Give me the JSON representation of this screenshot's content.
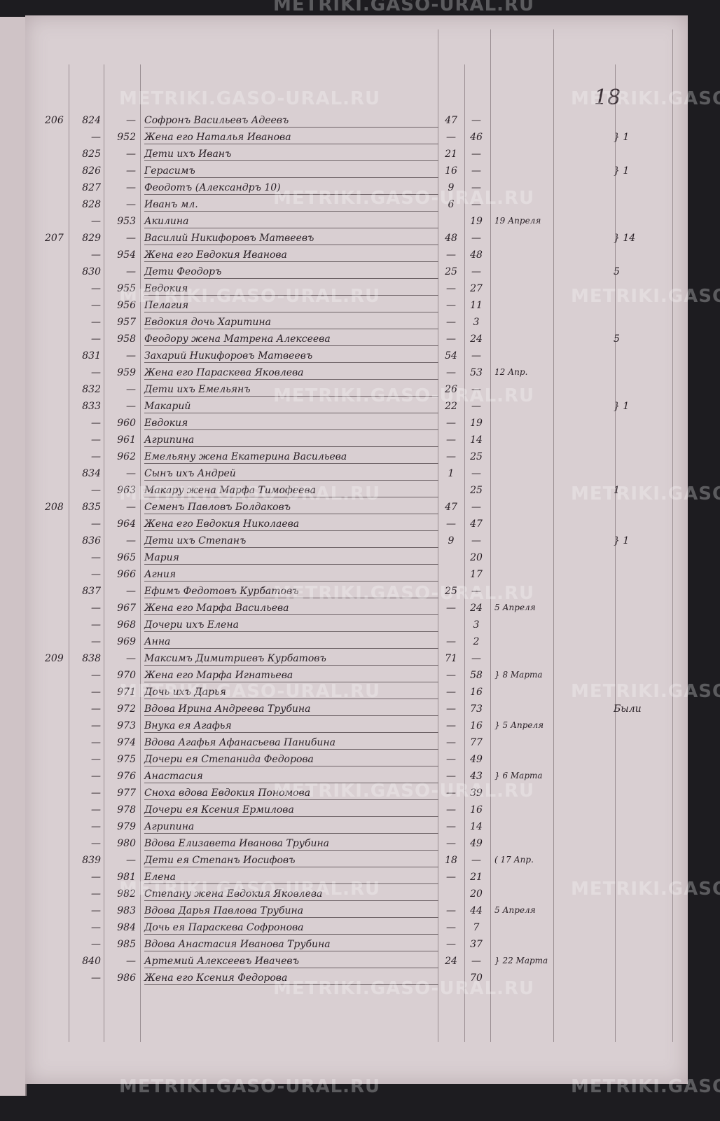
{
  "watermark": "METRIKI.GASO-URAL.RU",
  "page_number": "18",
  "rows": [
    {
      "household": "206",
      "male_no": "824",
      "female_no": "—",
      "name": "Софронъ Васильевъ Адеевъ",
      "male_age": "47",
      "female_age": "—",
      "note": "",
      "remark": ""
    },
    {
      "household": "",
      "male_no": "—",
      "female_no": "952",
      "name": "Жена его Наталья Иванова",
      "male_age": "—",
      "female_age": "46",
      "note": "",
      "remark": "} 1"
    },
    {
      "household": "",
      "male_no": "825",
      "female_no": "—",
      "name": "Дети ихъ Иванъ",
      "male_age": "21",
      "female_age": "—",
      "note": "",
      "remark": ""
    },
    {
      "household": "",
      "male_no": "826",
      "female_no": "—",
      "name": "Герасимъ",
      "male_age": "16",
      "female_age": "—",
      "note": "",
      "remark": "} 1"
    },
    {
      "household": "",
      "male_no": "827",
      "female_no": "—",
      "name": "Феодотъ (Александръ 10)",
      "male_age": "9",
      "female_age": "—",
      "note": "",
      "remark": ""
    },
    {
      "household": "",
      "male_no": "828",
      "female_no": "—",
      "name": "Иванъ мл.",
      "male_age": "6",
      "female_age": "—",
      "note": "",
      "remark": ""
    },
    {
      "household": "",
      "male_no": "—",
      "female_no": "953",
      "name": "Акилина",
      "male_age": "",
      "female_age": "19",
      "note": "19 Апреля",
      "remark": ""
    },
    {
      "household": "207",
      "male_no": "829",
      "female_no": "—",
      "name": "Василий Никифоровъ Матвеевъ",
      "male_age": "48",
      "female_age": "—",
      "note": "",
      "remark": "} 14"
    },
    {
      "household": "",
      "male_no": "—",
      "female_no": "954",
      "name": "Жена его Евдокия Иванова",
      "male_age": "—",
      "female_age": "48",
      "note": "",
      "remark": ""
    },
    {
      "household": "",
      "male_no": "830",
      "female_no": "—",
      "name": "Дети Феодоръ",
      "male_age": "25",
      "female_age": "—",
      "note": "",
      "remark": "5"
    },
    {
      "household": "",
      "male_no": "—",
      "female_no": "955",
      "name": "Евдокия",
      "male_age": "—",
      "female_age": "27",
      "note": "",
      "remark": ""
    },
    {
      "household": "",
      "male_no": "—",
      "female_no": "956",
      "name": "Пелагия",
      "male_age": "—",
      "female_age": "11",
      "note": "",
      "remark": ""
    },
    {
      "household": "",
      "male_no": "—",
      "female_no": "957",
      "name": "Евдокия дочь Харитина",
      "male_age": "—",
      "female_age": "3",
      "note": "",
      "remark": ""
    },
    {
      "household": "",
      "male_no": "—",
      "female_no": "958",
      "name": "Феодору жена Матрена Алексеева",
      "male_age": "—",
      "female_age": "24",
      "note": "",
      "remark": "5"
    },
    {
      "household": "",
      "male_no": "831",
      "female_no": "—",
      "name": "Захарий Никифоровъ Матвеевъ",
      "male_age": "54",
      "female_age": "—",
      "note": "",
      "remark": ""
    },
    {
      "household": "",
      "male_no": "—",
      "female_no": "959",
      "name": "Жена его Параскева Яковлева",
      "male_age": "—",
      "female_age": "53",
      "note": "12 Апр.",
      "remark": ""
    },
    {
      "household": "",
      "male_no": "832",
      "female_no": "—",
      "name": "Дети ихъ Емельянъ",
      "male_age": "26",
      "female_age": "—",
      "note": "",
      "remark": ""
    },
    {
      "household": "",
      "male_no": "833",
      "female_no": "—",
      "name": "Макарий",
      "male_age": "22",
      "female_age": "—",
      "note": "",
      "remark": "} 1"
    },
    {
      "household": "",
      "male_no": "—",
      "female_no": "960",
      "name": "Евдокия",
      "male_age": "—",
      "female_age": "19",
      "note": "",
      "remark": ""
    },
    {
      "household": "",
      "male_no": "—",
      "female_no": "961",
      "name": "Агрипина",
      "male_age": "—",
      "female_age": "14",
      "note": "",
      "remark": ""
    },
    {
      "household": "",
      "male_no": "—",
      "female_no": "962",
      "name": "Емельяну жена Екатерина Васильева",
      "male_age": "—",
      "female_age": "25",
      "note": "",
      "remark": ""
    },
    {
      "household": "",
      "male_no": "834",
      "female_no": "—",
      "name": "Сынъ ихъ Андрей",
      "male_age": "1",
      "female_age": "—",
      "note": "",
      "remark": ""
    },
    {
      "household": "",
      "male_no": "—",
      "female_no": "963",
      "name": "Макару жена Марфа Тимофеева",
      "male_age": "",
      "female_age": "25",
      "note": "",
      "remark": "1"
    },
    {
      "household": "208",
      "male_no": "835",
      "female_no": "—",
      "name": "Семенъ Павловъ Болдаковъ",
      "male_age": "47",
      "female_age": "—",
      "note": "",
      "remark": ""
    },
    {
      "household": "",
      "male_no": "—",
      "female_no": "964",
      "name": "Жена его Евдокия Николаева",
      "male_age": "—",
      "female_age": "47",
      "note": "",
      "remark": ""
    },
    {
      "household": "",
      "male_no": "836",
      "female_no": "—",
      "name": "Дети ихъ Степанъ",
      "male_age": "9",
      "female_age": "—",
      "note": "",
      "remark": "} 1"
    },
    {
      "household": "",
      "male_no": "—",
      "female_no": "965",
      "name": "Мария",
      "male_age": "",
      "female_age": "20",
      "note": "",
      "remark": ""
    },
    {
      "household": "",
      "male_no": "—",
      "female_no": "966",
      "name": "Агния",
      "male_age": "",
      "female_age": "17",
      "note": "",
      "remark": ""
    },
    {
      "household": "",
      "male_no": "837",
      "female_no": "—",
      "name": "Ефимъ Федотовъ Курбатовъ",
      "male_age": "25",
      "female_age": "—",
      "note": "",
      "remark": ""
    },
    {
      "household": "",
      "male_no": "—",
      "female_no": "967",
      "name": "Жена его Марфа Васильева",
      "male_age": "—",
      "female_age": "24",
      "note": "5 Апреля",
      "remark": ""
    },
    {
      "household": "",
      "male_no": "—",
      "female_no": "968",
      "name": "Дочери ихъ Елена",
      "male_age": "",
      "female_age": "3",
      "note": "",
      "remark": ""
    },
    {
      "household": "",
      "male_no": "—",
      "female_no": "969",
      "name": "Анна",
      "male_age": "—",
      "female_age": "2",
      "note": "",
      "remark": ""
    },
    {
      "household": "209",
      "male_no": "838",
      "female_no": "—",
      "name": "Максимъ Димитриевъ Курбатовъ",
      "male_age": "71",
      "female_age": "—",
      "note": "",
      "remark": ""
    },
    {
      "household": "",
      "male_no": "—",
      "female_no": "970",
      "name": "Жена его Марфа Игнатьева",
      "male_age": "—",
      "female_age": "58",
      "note": "} 8 Марта",
      "remark": ""
    },
    {
      "household": "",
      "male_no": "—",
      "female_no": "971",
      "name": "Дочь ихъ Дарья",
      "male_age": "—",
      "female_age": "16",
      "note": "",
      "remark": ""
    },
    {
      "household": "",
      "male_no": "—",
      "female_no": "972",
      "name": "Вдова Ирина Андреева Трубина",
      "male_age": "—",
      "female_age": "73",
      "note": "",
      "remark": "Были"
    },
    {
      "household": "",
      "male_no": "—",
      "female_no": "973",
      "name": "Внука ея Агафья",
      "male_age": "—",
      "female_age": "16",
      "note": "} 5 Апреля",
      "remark": ""
    },
    {
      "household": "",
      "male_no": "—",
      "female_no": "974",
      "name": "Вдова Агафья Афанасьева Панибина",
      "male_age": "—",
      "female_age": "77",
      "note": "",
      "remark": ""
    },
    {
      "household": "",
      "male_no": "—",
      "female_no": "975",
      "name": "Дочери ея Степанида Федорова",
      "male_age": "—",
      "female_age": "49",
      "note": "",
      "remark": ""
    },
    {
      "household": "",
      "male_no": "—",
      "female_no": "976",
      "name": "Анастасия",
      "male_age": "—",
      "female_age": "43",
      "note": "} 6 Марта",
      "remark": ""
    },
    {
      "household": "",
      "male_no": "—",
      "female_no": "977",
      "name": "Сноха вдова Евдокия Пономова",
      "male_age": "—",
      "female_age": "39",
      "note": "",
      "remark": ""
    },
    {
      "household": "",
      "male_no": "—",
      "female_no": "978",
      "name": "Дочери ея Ксения Ермилова",
      "male_age": "—",
      "female_age": "16",
      "note": "",
      "remark": ""
    },
    {
      "household": "",
      "male_no": "—",
      "female_no": "979",
      "name": "Агрипина",
      "male_age": "—",
      "female_age": "14",
      "note": "",
      "remark": ""
    },
    {
      "household": "",
      "male_no": "—",
      "female_no": "980",
      "name": "Вдова Елизавета Иванова Трубина",
      "male_age": "—",
      "female_age": "49",
      "note": "",
      "remark": ""
    },
    {
      "household": "",
      "male_no": "839",
      "female_no": "—",
      "name": "Дети ея Степанъ Иосифовъ",
      "male_age": "18",
      "female_age": "—",
      "note": "( 17 Апр.",
      "remark": ""
    },
    {
      "household": "",
      "male_no": "—",
      "female_no": "981",
      "name": "Елена",
      "male_age": "—",
      "female_age": "21",
      "note": "",
      "remark": ""
    },
    {
      "household": "",
      "male_no": "—",
      "female_no": "982",
      "name": "Степану жена Евдокия Яковлева",
      "male_age": "",
      "female_age": "20",
      "note": "",
      "remark": ""
    },
    {
      "household": "",
      "male_no": "—",
      "female_no": "983",
      "name": "Вдова Дарья Павлова Трубина",
      "male_age": "—",
      "female_age": "44",
      "note": "5 Апреля",
      "remark": ""
    },
    {
      "household": "",
      "male_no": "—",
      "female_no": "984",
      "name": "Дочь ея Параскева Софронова",
      "male_age": "—",
      "female_age": "7",
      "note": "",
      "remark": ""
    },
    {
      "household": "",
      "male_no": "—",
      "female_no": "985",
      "name": "Вдова Анастасия Иванова Трубина",
      "male_age": "—",
      "female_age": "37",
      "note": "",
      "remark": ""
    },
    {
      "household": "",
      "male_no": "840",
      "female_no": "—",
      "name": "Артемий Алексеевъ Ивачевъ",
      "male_age": "24",
      "female_age": "—",
      "note": "} 22 Марта",
      "remark": ""
    },
    {
      "household": "",
      "male_no": "—",
      "female_no": "986",
      "name": "Жена его Ксения Федорова",
      "male_age": "",
      "female_age": "70",
      "note": "",
      "remark": ""
    }
  ]
}
